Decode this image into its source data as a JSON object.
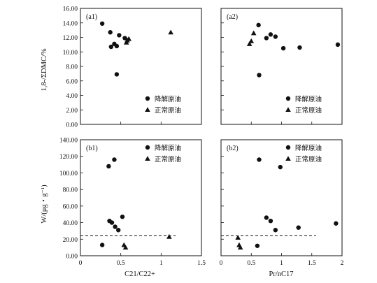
{
  "chart_data": {
    "type": "scatter",
    "layout": "2x2 grid",
    "legend": [
      "降解原油",
      "正常原油"
    ],
    "xlabels": [
      "C21/C22+",
      "Pr/nC17"
    ],
    "ylabels": [
      "1,8-/ΣDMC/%",
      "W/(μg・g⁻¹)"
    ],
    "panels": [
      {
        "tag": "(a1)",
        "xlim": [
          0,
          1.5
        ],
        "ylim": [
          0,
          16
        ],
        "xticks": [],
        "yticks": [
          "0.00",
          "2.00",
          "4.00",
          "6.00",
          "8.00",
          "10.00",
          "12.00",
          "14.00",
          "16.00"
        ],
        "legend_position": "bottom-right",
        "series": [
          {
            "name": "降解原油",
            "marker": "circle",
            "points": [
              [
                0.27,
                13.9
              ],
              [
                0.37,
                12.7
              ],
              [
                0.38,
                10.7
              ],
              [
                0.42,
                11.1
              ],
              [
                0.45,
                10.8
              ],
              [
                0.48,
                12.3
              ],
              [
                0.55,
                11.9
              ],
              [
                0.45,
                6.9
              ]
            ]
          },
          {
            "name": "正常原油",
            "marker": "triangle",
            "points": [
              [
                0.57,
                11.3
              ],
              [
                0.58,
                11.6
              ],
              [
                0.6,
                11.8
              ],
              [
                1.12,
                12.7
              ]
            ]
          }
        ]
      },
      {
        "tag": "(a2)",
        "xlim": [
          0,
          2
        ],
        "ylim": [
          0,
          16
        ],
        "xticks": [],
        "yticks": [],
        "legend_position": "bottom-right",
        "series": [
          {
            "name": "降解原油",
            "marker": "circle",
            "points": [
              [
                0.62,
                13.7
              ],
              [
                0.75,
                11.9
              ],
              [
                0.82,
                12.4
              ],
              [
                0.9,
                12.1
              ],
              [
                1.03,
                10.5
              ],
              [
                1.3,
                10.6
              ],
              [
                1.93,
                11.0
              ],
              [
                0.63,
                6.8
              ]
            ]
          },
          {
            "name": "正常原油",
            "marker": "triangle",
            "points": [
              [
                0.47,
                11.1
              ],
              [
                0.5,
                11.5
              ],
              [
                0.54,
                12.6
              ]
            ]
          }
        ]
      },
      {
        "tag": "(b1)",
        "xlim": [
          0,
          1.5
        ],
        "ylim": [
          0,
          140
        ],
        "xticks": [
          "0",
          "0.5",
          "1",
          "1.5"
        ],
        "yticks": [
          "0.00",
          "20.00",
          "40.00",
          "60.00",
          "80.00",
          "100.00",
          "120.00",
          "140.00"
        ],
        "legend_position": "top-right",
        "dashed_line": {
          "y": 24,
          "x_from": 0,
          "x_to": 1.18
        },
        "series": [
          {
            "name": "降解原油",
            "marker": "circle",
            "points": [
              [
                0.27,
                13
              ],
              [
                0.35,
                108
              ],
              [
                0.42,
                116
              ],
              [
                0.36,
                42
              ],
              [
                0.39,
                40
              ],
              [
                0.43,
                35
              ],
              [
                0.47,
                31
              ],
              [
                0.52,
                47
              ]
            ]
          },
          {
            "name": "正常原油",
            "marker": "triangle",
            "points": [
              [
                0.54,
                13
              ],
              [
                0.56,
                10
              ],
              [
                1.1,
                23
              ]
            ]
          }
        ]
      },
      {
        "tag": "(b2)",
        "xlim": [
          0,
          2
        ],
        "ylim": [
          0,
          140
        ],
        "xticks": [
          "0",
          "0.5",
          "1",
          "1.5",
          "2"
        ],
        "yticks": [],
        "legend_position": "top-right",
        "dashed_line": {
          "y": 24,
          "x_from": 0,
          "x_to": 1.57
        },
        "series": [
          {
            "name": "降解原油",
            "marker": "circle",
            "points": [
              [
                0.63,
                116
              ],
              [
                0.98,
                107
              ],
              [
                0.75,
                46
              ],
              [
                0.82,
                42
              ],
              [
                0.9,
                31
              ],
              [
                1.28,
                34
              ],
              [
                1.9,
                39
              ],
              [
                0.6,
                12
              ]
            ]
          },
          {
            "name": "正常原油",
            "marker": "triangle",
            "points": [
              [
                0.28,
                22
              ],
              [
                0.3,
                13
              ],
              [
                0.32,
                10
              ]
            ]
          }
        ]
      }
    ]
  }
}
